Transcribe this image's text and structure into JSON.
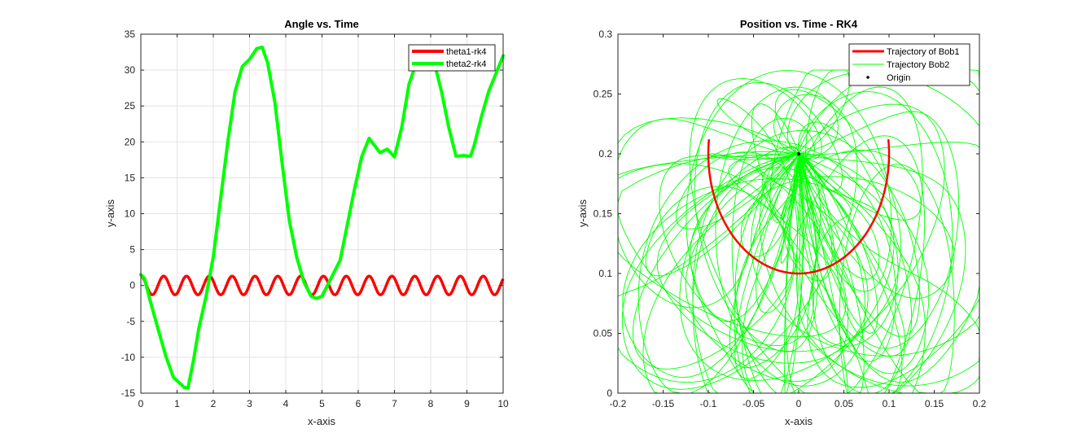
{
  "chart_data": [
    {
      "type": "line",
      "title": "Angle vs. Time",
      "xlabel": "x-axis",
      "ylabel": "y-axis",
      "xlim": [
        0,
        10
      ],
      "ylim": [
        -15,
        35
      ],
      "xticks": [
        "0",
        "1",
        "2",
        "3",
        "4",
        "5",
        "6",
        "7",
        "8",
        "9",
        "10"
      ],
      "yticks": [
        "-15",
        "-10",
        "-5",
        "0",
        "5",
        "10",
        "15",
        "20",
        "25",
        "30",
        "35"
      ],
      "grid": true,
      "legend_position": "top-right",
      "series": [
        {
          "name": "theta1-rk4",
          "color": "#ff0000",
          "kind": "oscillation",
          "amplitude": 1.3,
          "period": 0.63,
          "start_value": 1.3
        },
        {
          "name": "theta2-rk4",
          "color": "#00ff00",
          "x": [
            0,
            0.1,
            0.25,
            0.5,
            0.7,
            0.9,
            1.05,
            1.2,
            1.3,
            1.45,
            1.6,
            1.8,
            2.0,
            2.2,
            2.4,
            2.6,
            2.8,
            3.0,
            3.2,
            3.35,
            3.5,
            3.7,
            3.9,
            4.1,
            4.3,
            4.5,
            4.7,
            4.85,
            5.0,
            5.2,
            5.35,
            5.5,
            5.7,
            5.9,
            6.1,
            6.3,
            6.45,
            6.6,
            6.8,
            7.0,
            7.2,
            7.4,
            7.6,
            7.8,
            8.0,
            8.15,
            8.3,
            8.5,
            8.7,
            8.9,
            9.1,
            9.2,
            9.4,
            9.6,
            9.8,
            10.0
          ],
          "y": [
            1.5,
            1.0,
            -2.0,
            -6.5,
            -10.0,
            -12.8,
            -13.5,
            -14.2,
            -14.3,
            -10.5,
            -6.0,
            -1.5,
            4.0,
            12.0,
            20.0,
            27.0,
            30.5,
            31.5,
            33.0,
            33.2,
            31.0,
            25.5,
            17.0,
            9.0,
            4.0,
            0.5,
            -1.5,
            -1.8,
            -1.5,
            0.5,
            2.0,
            3.5,
            8.5,
            13.5,
            18.0,
            20.5,
            19.5,
            18.5,
            19.0,
            17.9,
            22.0,
            28.0,
            31.0,
            31.5,
            31.0,
            30.0,
            27.0,
            22.0,
            18.0,
            18.1,
            18.0,
            19.5,
            23.5,
            27.0,
            29.5,
            32.0
          ]
        }
      ]
    },
    {
      "type": "line",
      "title": "Position vs. Time - RK4",
      "xlabel": "x-axis",
      "ylabel": "y-axis",
      "xlim": [
        -0.2,
        0.2
      ],
      "ylim": [
        0,
        0.3
      ],
      "xticks": [
        "-0.2",
        "-0.15",
        "-0.1",
        "-0.05",
        "0",
        "0.05",
        "0.1",
        "0.15",
        "0.2"
      ],
      "yticks": [
        "0",
        "0.05",
        "0.1",
        "0.15",
        "0.2",
        "0.25",
        "0.3"
      ],
      "grid": false,
      "legend_position": "top-right",
      "series": [
        {
          "name": "Trajectory of Bob1",
          "color": "#ff0000",
          "kind": "arc",
          "center": [
            0,
            0.2
          ],
          "radius": 0.1,
          "angle_range_deg": [
            -97,
            97
          ]
        },
        {
          "name": "Trajectory Bob2",
          "color": "#00ff00",
          "kind": "tangle",
          "pivot": [
            0,
            0.2
          ],
          "x_range": [
            -0.2,
            0.2
          ],
          "y_range": [
            0.0,
            0.27
          ]
        },
        {
          "name": "Origin",
          "color": "#000000",
          "kind": "point",
          "x": [
            0
          ],
          "y": [
            0.2
          ]
        }
      ]
    }
  ]
}
